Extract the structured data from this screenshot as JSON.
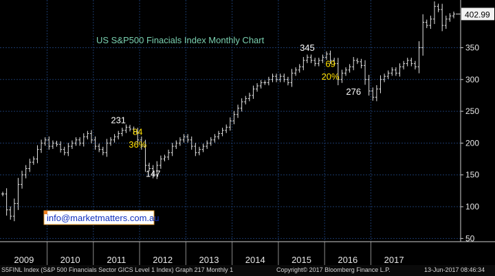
{
  "chart_data": {
    "type": "ohlc",
    "title": "US S&P500 Finacials Index Monthly Chart",
    "ylim": [
      45,
      425
    ],
    "y_ticks": [
      50,
      100,
      150,
      200,
      250,
      300,
      350
    ],
    "x_labels": [
      "2009",
      "2010",
      "2011",
      "2012",
      "2013",
      "2014",
      "2015",
      "2016",
      "2017"
    ],
    "grid": true,
    "last_price_label": "402.99",
    "series": [
      {
        "values": [
          120,
          95,
          85,
          105,
          135,
          150,
          160,
          170,
          175,
          190,
          200,
          205,
          195,
          200,
          198,
          190,
          185,
          195,
          200,
          205,
          200,
          210,
          215,
          205,
          195,
          190,
          185,
          200,
          205,
          210,
          215,
          220,
          225,
          222,
          218,
          205,
          195,
          165,
          160,
          150,
          165,
          175,
          178,
          185,
          195,
          200,
          205,
          210,
          205,
          195,
          185,
          190,
          195,
          200,
          205,
          210,
          215,
          220,
          225,
          235,
          245,
          255,
          265,
          270,
          275,
          285,
          290,
          295,
          295,
          300,
          305,
          300,
          305,
          300,
          295,
          310,
          315,
          320,
          330,
          335,
          330,
          325,
          330,
          335,
          340,
          330,
          325,
          300,
          310,
          315,
          320,
          330,
          328,
          322,
          300,
          282,
          272,
          285,
          300,
          305,
          310,
          315,
          310,
          320,
          325,
          330,
          325,
          320,
          350,
          390,
          385,
          395,
          415,
          410,
          385,
          395,
          400,
          403
        ]
      }
    ],
    "annotations": [
      {
        "label": "231",
        "x_month": 30,
        "y": 231,
        "color": "#ffffff"
      },
      {
        "label": "147",
        "x_month": 39,
        "y": 147,
        "color": "#ffffff"
      },
      {
        "label": "84",
        "x_month": 35,
        "y": 213,
        "color": "#ffe000"
      },
      {
        "label": "36%",
        "x_month": 35,
        "y": 193,
        "color": "#ffe000"
      },
      {
        "label": "345",
        "x_month": 79,
        "y": 345,
        "color": "#ffffff"
      },
      {
        "label": "276",
        "x_month": 91,
        "y": 276,
        "color": "#ffffff"
      },
      {
        "label": "69",
        "x_month": 85,
        "y": 320,
        "color": "#ffe000"
      },
      {
        "label": "20%",
        "x_month": 85,
        "y": 300,
        "color": "#ffe000"
      }
    ]
  },
  "watermark_text": "info@marketmatters.com.au",
  "footer": {
    "left": "S5FINL Index (S&P 500 Financials Sector GICS Level 1 Index) Graph 217  Monthly 1",
    "center": "Copyright© 2017 Bloomberg Finance L.P.",
    "right": "13-Jun-2017 08:46:34"
  },
  "colors": {
    "background": "#000000",
    "grid": "#1b3a6b",
    "price": "#e6e6e6",
    "title": "#7ad0b0",
    "annotation_pct": "#ffe000",
    "watermark_bg": "#ffffff",
    "watermark_text": "#1030c0"
  }
}
